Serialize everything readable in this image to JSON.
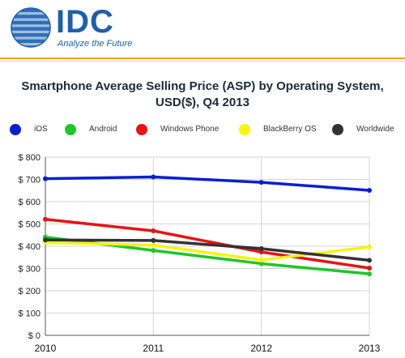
{
  "header": {
    "logo_text": "IDC",
    "tagline": "Analyze the Future"
  },
  "chart_data": {
    "type": "line",
    "title": "Smartphone Average Selling Price (ASP) by Operating System, USD($), Q4 2013",
    "xlabel": "",
    "ylabel": "",
    "x": [
      "2010",
      "2011",
      "2012",
      "2013"
    ],
    "ylim": [
      0,
      800
    ],
    "yticks": [
      "$ 0",
      "$ 100",
      "$ 200",
      "$ 300",
      "$ 400",
      "$ 500",
      "$ 600",
      "$ 700",
      "$ 800"
    ],
    "grid": true,
    "legend_position": "top",
    "series": [
      {
        "name": "iOS",
        "color": "#0b1fcf",
        "values": [
          703,
          711,
          687,
          651
        ]
      },
      {
        "name": "Android",
        "color": "#1fc52a",
        "values": [
          441,
          381,
          322,
          276
        ]
      },
      {
        "name": "Windows Phone",
        "color": "#e41515",
        "values": [
          521,
          469,
          374,
          302
        ]
      },
      {
        "name": "BlackBerry OS",
        "color": "#f7f312",
        "values": [
          417,
          405,
          338,
          397
        ]
      },
      {
        "name": "Worldwide",
        "color": "#333333",
        "values": [
          428,
          426,
          389,
          337
        ]
      }
    ]
  }
}
